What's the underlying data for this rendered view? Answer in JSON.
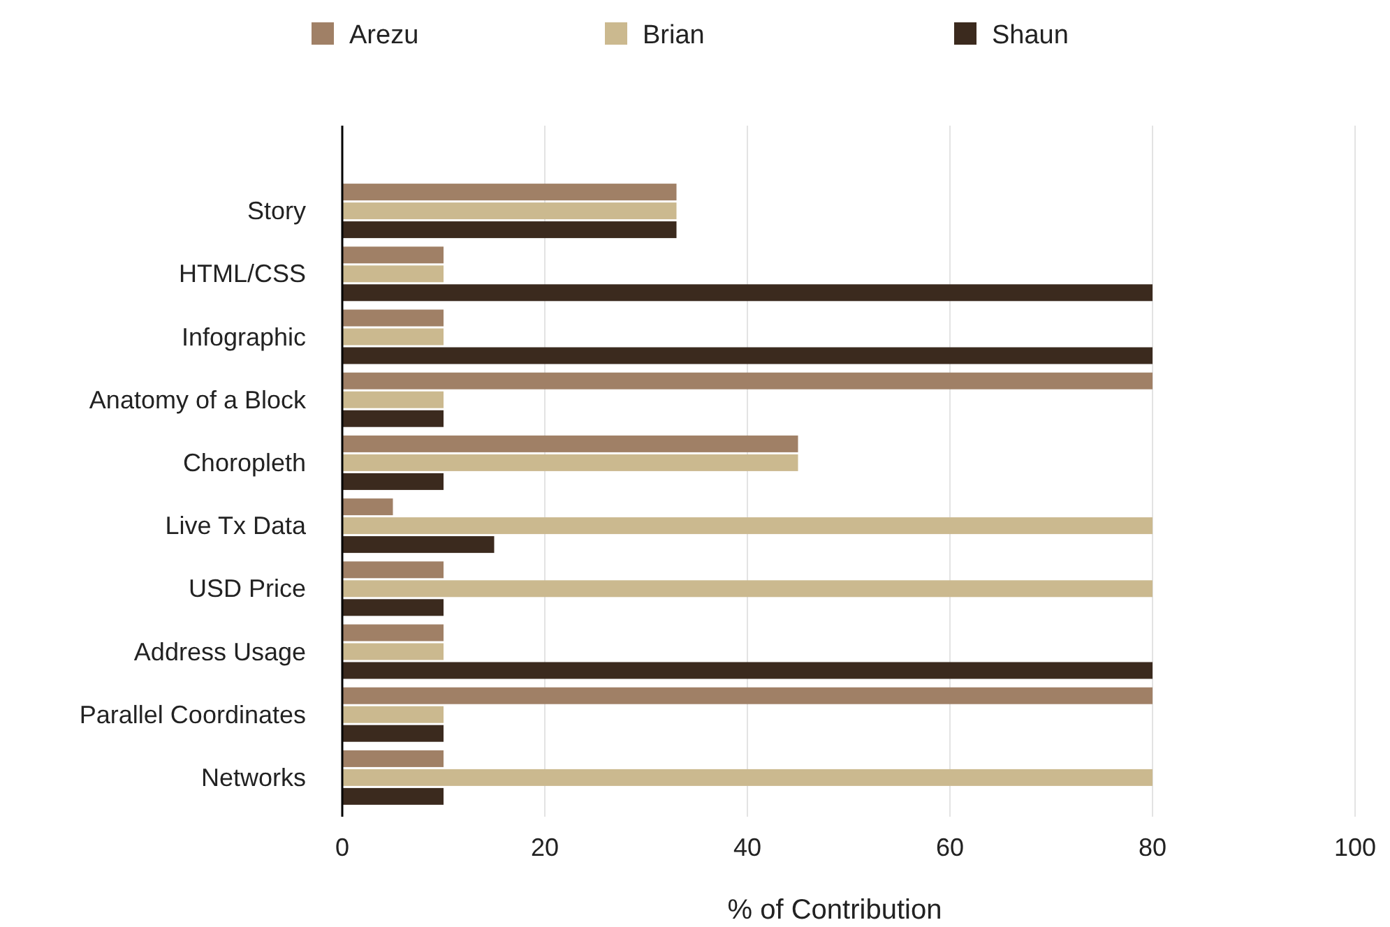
{
  "chart_data": {
    "type": "bar",
    "orientation": "horizontal",
    "xlabel": "% of Contribution",
    "categories": [
      "Story",
      "HTML/CSS",
      "Infographic",
      "Anatomy of a Block",
      "Choropleth",
      "Live Tx Data",
      "USD Price",
      "Address Usage",
      "Parallel Coordinates",
      "Networks"
    ],
    "series": [
      {
        "name": "Arezu",
        "color": "#a08066",
        "values": [
          33,
          10,
          10,
          80,
          45,
          5,
          10,
          10,
          80,
          10
        ]
      },
      {
        "name": "Brian",
        "color": "#cbb98f",
        "values": [
          33,
          10,
          10,
          10,
          45,
          80,
          80,
          10,
          10,
          80
        ]
      },
      {
        "name": "Shaun",
        "color": "#3b2a1e",
        "values": [
          33,
          80,
          80,
          10,
          10,
          15,
          10,
          80,
          10,
          10
        ]
      }
    ],
    "xlim": [
      0,
      100
    ],
    "xticks": [
      0,
      20,
      40,
      60,
      80,
      100
    ],
    "grid": "x",
    "legend": "top"
  }
}
